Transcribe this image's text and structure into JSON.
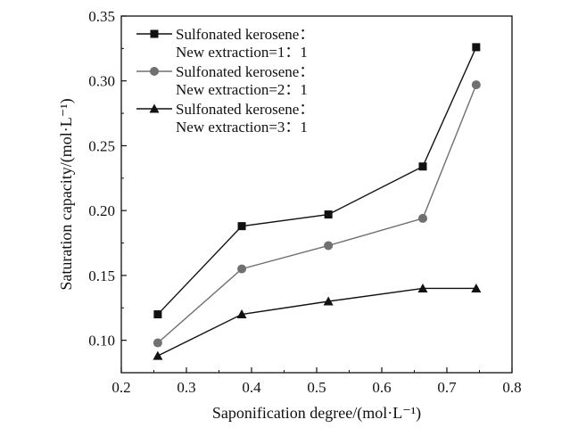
{
  "chart_data": {
    "type": "line",
    "title": "",
    "xlabel": "Saponification degree/(mol·L⁻¹)",
    "ylabel": "Saturation capacity/(mol·L⁻¹)",
    "xlim": [
      0.2,
      0.8
    ],
    "ylim": [
      0.075,
      0.35
    ],
    "x_ticks": [
      "0.2",
      "0.3",
      "0.4",
      "0.5",
      "0.6",
      "0.7",
      "0.8"
    ],
    "y_ticks": [
      "0.10",
      "0.15",
      "0.20",
      "0.25",
      "0.30",
      "0.35"
    ],
    "x": [
      0.256,
      0.385,
      0.518,
      0.663,
      0.745
    ],
    "grid": false,
    "legend_position": "top-left",
    "series": [
      {
        "name": "Sulfonated kerosene：New extraction=1：1",
        "legend_line1": "Sulfonated kerosene：",
        "legend_line2": "New extraction=1：1",
        "marker": "square",
        "color": "#111111",
        "values": [
          0.12,
          0.188,
          0.197,
          0.234,
          0.326
        ]
      },
      {
        "name": "Sulfonated kerosene：New extraction=2：1",
        "legend_line1": "Sulfonated kerosene：",
        "legend_line2": "New extraction=2：1",
        "marker": "circle",
        "color": "#707070",
        "values": [
          0.098,
          0.155,
          0.173,
          0.194,
          0.297
        ]
      },
      {
        "name": "Sulfonated kerosene：New extraction=3：1",
        "legend_line1": "Sulfonated kerosene：",
        "legend_line2": "New extraction=3：1",
        "marker": "triangle",
        "color": "#111111",
        "values": [
          0.088,
          0.12,
          0.13,
          0.14,
          0.14
        ]
      }
    ]
  }
}
